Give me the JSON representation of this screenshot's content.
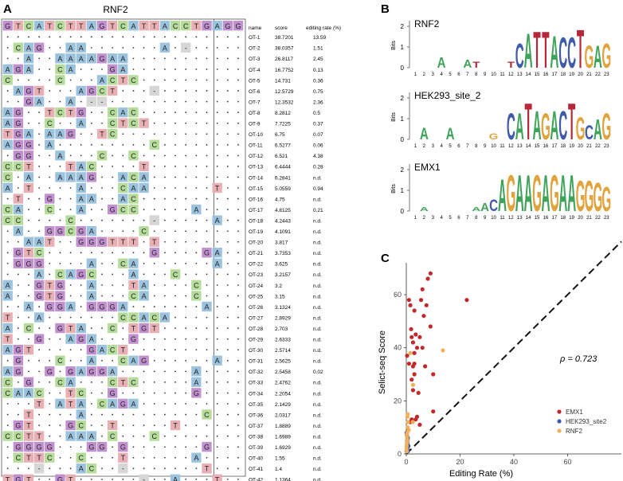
{
  "figure": {
    "panel_a": {
      "label": "A",
      "title": "RNF2",
      "headers": [
        "name",
        "score",
        "editing rate (%)"
      ],
      "reference": [
        "G",
        "T",
        "C",
        "A",
        "T",
        "C",
        "T",
        "T",
        "A",
        "G",
        "T",
        "C",
        "A",
        "T",
        "T",
        "A",
        "C",
        "C",
        "T",
        "G",
        "A",
        "G",
        "G"
      ],
      "rows": [
        {
          "name": "OT-1",
          "score": "38.7201",
          "rate": "13.59",
          "seq": "......................."
        },
        {
          "name": "OT-2",
          "score": "38.0357",
          "rate": "1.51",
          "seq": ".CAG..AA.......A.-....."
        },
        {
          "name": "OT-3",
          "score": "26.8117",
          "rate": "2.45",
          "seq": "..A..AAAAGAA..........."
        },
        {
          "name": "OT-4",
          "score": "16.7752",
          "rate": "0.13",
          "seq": "AGA..CA...GA..........."
        },
        {
          "name": "OT-5",
          "score": "14.731",
          "rate": "0.36",
          "seq": "C....C...ACTC.........."
        },
        {
          "name": "OT-6",
          "score": "12.5729",
          "rate": "0.75",
          "seq": ".AGT...AGCT...-........"
        },
        {
          "name": "OT-7",
          "score": "12.3532",
          "rate": "2.36",
          "seq": "..GA..A.--............."
        },
        {
          "name": "OT-8",
          "score": "8.2812",
          "rate": "0.5",
          "seq": "AG..TCTG..CAC.........."
        },
        {
          "name": "OT-9",
          "score": "7.7225",
          "rate": "0.37",
          "seq": "AG..C..A..CTCT........."
        },
        {
          "name": "OT-10",
          "score": "6.75",
          "rate": "0.07",
          "seq": "TGA.AAG..TC............"
        },
        {
          "name": "OT-11",
          "score": "6.5277",
          "rate": "0.06",
          "seq": "AGG.A.........C........"
        },
        {
          "name": "OT-12",
          "score": "6.521",
          "rate": "4.38",
          "seq": ".GG..A...C..C.........."
        },
        {
          "name": "OT-13",
          "score": "6.4444",
          "rate": "0.28",
          "seq": "CCT...TAC....T........."
        },
        {
          "name": "OT-14",
          "score": "6.2841",
          "rate": "n.d.",
          "seq": "C.A..AAAG..ACA........."
        },
        {
          "name": "OT-15",
          "score": "5.0559",
          "rate": "0.94",
          "seq": "A.T....A...CAA......T.."
        },
        {
          "name": "OT-16",
          "score": "4.75",
          "rate": "n.d.",
          "seq": ".T..G..AA..AC.........."
        },
        {
          "name": "OT-17",
          "score": "4.8125",
          "rate": "0.21",
          "seq": "CA..C..A..GCC.....A...."
        },
        {
          "name": "OT-18",
          "score": "4.2443",
          "rate": "n.d.",
          "seq": "CC....C.......-.....A.."
        },
        {
          "name": "OT-19",
          "score": "4.1091",
          "rate": "n.d.",
          "seq": ".A..GGCGA....C........."
        },
        {
          "name": "OT-20",
          "score": "3.817",
          "rate": "n.d.",
          "seq": "..AAT..GGGTTT.T........"
        },
        {
          "name": "OT-21",
          "score": "3.7353",
          "rate": "n.d.",
          "seq": ".GTC..........G....GA.."
        },
        {
          "name": "OT-22",
          "score": "3.625",
          "rate": "n.d.",
          "seq": ".GGG....A..CA.......A.."
        },
        {
          "name": "OT-23",
          "score": "3.2157",
          "rate": "n.d.",
          "seq": "...A.CAGC...A...C......"
        },
        {
          "name": "OT-24",
          "score": "3.2",
          "rate": "n.d.",
          "seq": "A..GTG..A...TA....C...."
        },
        {
          "name": "OT-25",
          "score": "3.15",
          "rate": "n.d.",
          "seq": "A..GTG..A...CA....C...."
        },
        {
          "name": "OT-26",
          "score": "3.1324",
          "rate": "n.d.",
          "seq": "..A.GGA.GGGA.......A..."
        },
        {
          "name": "OT-27",
          "score": "2.8929",
          "rate": "n.d.",
          "seq": "T..A.......CCACA......."
        },
        {
          "name": "OT-28",
          "score": "2.703",
          "rate": "n.d.",
          "seq": "A.C..GTA..C.TGT........"
        },
        {
          "name": "OT-29",
          "score": "2.6333",
          "rate": "n.d.",
          "seq": "T..G..AGA...G.........."
        },
        {
          "name": "OT-30",
          "score": "2.5714",
          "rate": "n.d.",
          "seq": "AGT.....GACT..........."
        },
        {
          "name": "OT-31",
          "score": "2.5625",
          "rate": "n.d.",
          "seq": ".G...C..A..CAG......A.."
        },
        {
          "name": "OT-32",
          "score": "2.5458",
          "rate": "0.02",
          "seq": "AG..G.GAGGA.......A...."
        },
        {
          "name": "OT-33",
          "score": "2.4762",
          "rate": "n.d.",
          "seq": "C.G..CA...CTC.....A...."
        },
        {
          "name": "OT-34",
          "score": "2.2054",
          "rate": "n.d.",
          "seq": "CAAC..TC..G.......G...."
        },
        {
          "name": "OT-35",
          "score": "2.1429",
          "rate": "n.d.",
          "seq": "...T.ATA.CAGA.........."
        },
        {
          "name": "OT-36",
          "score": "2.0317",
          "rate": "n.d.",
          "seq": "..T....A...........C..."
        },
        {
          "name": "OT-37",
          "score": "1.8889",
          "rate": "n.d.",
          "seq": ".GT...GC..T.....T......"
        },
        {
          "name": "OT-38",
          "score": "1.6989",
          "rate": "n.d.",
          "seq": "CCTT..AAA.C...C........"
        },
        {
          "name": "OT-39",
          "score": "1.6929",
          "rate": "n.d.",
          "seq": ".GGGG...GG.G.......G..."
        },
        {
          "name": "OT-40",
          "score": "1.55",
          "rate": "n.d.",
          "seq": ".CTTC..C...T......A...."
        },
        {
          "name": "OT-41",
          "score": "1.4",
          "rate": "n.d.",
          "seq": "...-...AC..-.......T..."
        },
        {
          "name": "OT-42",
          "score": "1.1364",
          "rate": "n.d.",
          "seq": "TGT..GT......-..A...T.."
        }
      ]
    },
    "panel_b": {
      "label": "B",
      "y_label": "Bits",
      "y_ticks": [
        "0",
        "1",
        "2"
      ],
      "positions": [
        "1",
        "2",
        "3",
        "4",
        "5",
        "6",
        "7",
        "8",
        "9",
        "10",
        "11",
        "12",
        "13",
        "14",
        "15",
        "16",
        "17",
        "18",
        "19",
        "20",
        "21",
        "22",
        "23"
      ],
      "logos": [
        {
          "name": "RNF2",
          "letters": [
            [
              "",
              0
            ],
            [
              "",
              0
            ],
            [
              "",
              0
            ],
            [
              "A",
              0.5
            ],
            [
              "",
              0
            ],
            [
              "",
              0
            ],
            [
              "A",
              0.4
            ],
            [
              "T",
              0.3
            ],
            [
              "",
              0
            ],
            [
              "",
              0
            ],
            [
              "",
              0
            ],
            [
              "T",
              0.3
            ],
            [
              "C",
              1.2
            ],
            [
              "A",
              1.7
            ],
            [
              "T",
              1.8
            ],
            [
              "T",
              1.8
            ],
            [
              "A",
              1.6
            ],
            [
              "C",
              1.5
            ],
            [
              "C",
              1.5
            ],
            [
              "T",
              1.9
            ],
            [
              "G",
              1.1
            ],
            [
              "A",
              1.1
            ],
            [
              "G",
              1.2
            ]
          ]
        },
        {
          "name": "HEK293_site_2",
          "letters": [
            [
              "",
              0
            ],
            [
              "A",
              0.6
            ],
            [
              "",
              0
            ],
            [
              "",
              0
            ],
            [
              "A",
              0.6
            ],
            [
              "",
              0
            ],
            [
              "",
              0
            ],
            [
              "",
              0
            ],
            [
              "",
              0
            ],
            [
              "G",
              0.3
            ],
            [
              "",
              0
            ],
            [
              "C",
              1.3
            ],
            [
              "A",
              1.3
            ],
            [
              "T",
              1.8
            ],
            [
              "A",
              1.4
            ],
            [
              "G",
              1.3
            ],
            [
              "A",
              1.4
            ],
            [
              "C",
              1.4
            ],
            [
              "T",
              1.8
            ],
            [
              "G",
              1.1
            ],
            [
              "C",
              0.7
            ],
            [
              "A",
              1.0
            ],
            [
              "G",
              1.3
            ]
          ]
        },
        {
          "name": "EMX1",
          "letters": [
            [
              "",
              0
            ],
            [
              "A",
              0.2
            ],
            [
              "",
              0
            ],
            [
              "",
              0
            ],
            [
              "",
              0
            ],
            [
              "",
              0
            ],
            [
              "",
              0
            ],
            [
              "A",
              0.2
            ],
            [
              "A",
              0.4
            ],
            [
              "C",
              0.6
            ],
            [
              "A",
              1.6
            ],
            [
              "G",
              1.8
            ],
            [
              "A",
              1.8
            ],
            [
              "A",
              1.8
            ],
            [
              "G",
              1.8
            ],
            [
              "A",
              1.8
            ],
            [
              "G",
              1.8
            ],
            [
              "A",
              1.8
            ],
            [
              "A",
              1.8
            ],
            [
              "G",
              1.5
            ],
            [
              "G",
              1.5
            ],
            [
              "G",
              1.4
            ],
            [
              "G",
              1.2
            ]
          ]
        }
      ]
    },
    "panel_c": {
      "label": "C",
      "title": "",
      "annotation": "ρ = 0.723",
      "chart_data": {
        "type": "scatter",
        "title": "",
        "xlabel": "Editing Rate (%)",
        "ylabel": "Selict-seq Score",
        "xlim": [
          0,
          80
        ],
        "ylim": [
          0,
          72
        ],
        "x_ticks": [
          "0",
          "20",
          "40",
          "60"
        ],
        "y_ticks": [
          "0",
          "20",
          "40",
          "60"
        ],
        "colors": {
          "EMX1": "#c0282a",
          "HEK293_site2": "#3c5aa8",
          "RNF2": "#f0b05a"
        },
        "series": [
          {
            "name": "EMX1",
            "points": [
              [
                0.3,
                37
              ],
              [
                1,
                58
              ],
              [
                1.5,
                56
              ],
              [
                1.8,
                47
              ],
              [
                2,
                44
              ],
              [
                2.5,
                42
              ],
              [
                3,
                54
              ],
              [
                3.5,
                45
              ],
              [
                4,
                40
              ],
              [
                3,
                34
              ],
              [
                5,
                44
              ],
              [
                5.5,
                58
              ],
              [
                6,
                62
              ],
              [
                6.5,
                52
              ],
              [
                7,
                33
              ],
              [
                8,
                66
              ],
              [
                9,
                68
              ],
              [
                9,
                48
              ],
              [
                10,
                30
              ],
              [
                10,
                16
              ],
              [
                22.5,
                58
              ],
              [
                2,
                28
              ],
              [
                2.5,
                24
              ],
              [
                3.5,
                13
              ],
              [
                4,
                14
              ],
              [
                1.5,
                12
              ],
              [
                5,
                11
              ],
              [
                3,
                30
              ],
              [
                2,
                13
              ],
              [
                1,
                34
              ],
              [
                4.5,
                23
              ],
              [
                6,
                40
              ],
              [
                7.5,
                56
              ],
              [
                3,
                38
              ],
              [
                2.5,
                33
              ]
            ]
          },
          {
            "name": "HEK293_site2",
            "points": [
              [
                0.1,
                1
              ],
              [
                0.2,
                2
              ],
              [
                0.3,
                3
              ],
              [
                0.4,
                4
              ],
              [
                0.5,
                5
              ],
              [
                0.6,
                6
              ],
              [
                0.2,
                7
              ],
              [
                0.1,
                8
              ],
              [
                0.5,
                2
              ],
              [
                0.8,
                3
              ],
              [
                0.3,
                5
              ],
              [
                0.6,
                1
              ]
            ]
          },
          {
            "name": "RNF2",
            "points": [
              [
                13.6,
                39
              ],
              [
                1.5,
                38
              ],
              [
                2.5,
                26
              ],
              [
                0.5,
                15
              ],
              [
                0.4,
                14
              ],
              [
                2.4,
                12
              ],
              [
                0.6,
                12
              ],
              [
                0.5,
                10
              ],
              [
                0.9,
                9
              ],
              [
                0.4,
                8
              ],
              [
                0.1,
                7
              ],
              [
                0.3,
                6
              ],
              [
                0.4,
                5
              ],
              [
                0.2,
                4
              ],
              [
                0.1,
                3
              ],
              [
                0.1,
                2
              ],
              [
                0.2,
                1
              ]
            ]
          }
        ],
        "legend": [
          "EMX1",
          "HEK293_site2",
          "RNF2"
        ]
      }
    }
  }
}
